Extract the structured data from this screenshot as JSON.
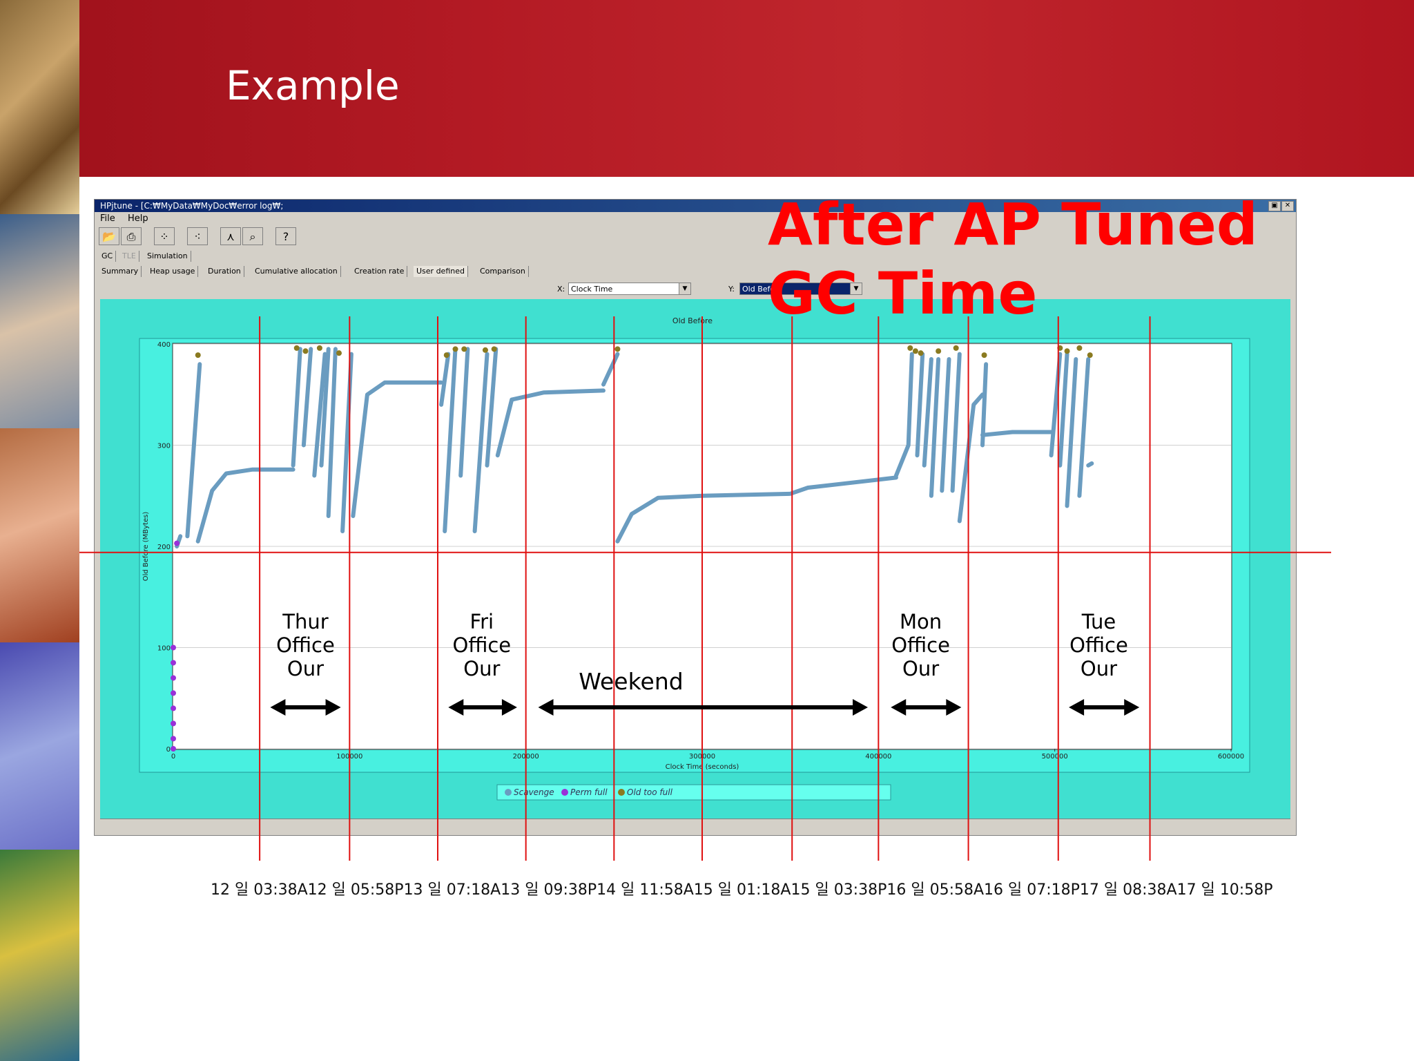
{
  "slide": {
    "title": "Example",
    "overlay_line1": "After AP Tuned",
    "overlay_line2": "GC Time",
    "date_labels": [
      "12 일 03:38A",
      "12 일 05:58P",
      "13 일 07:18A",
      "13 일 09:38P",
      "14 일 11:58A",
      "15 일 01:18A",
      "15 일 03:38P",
      "16 일 05:58A",
      "16 일 07:18P",
      "17 일 08:38A",
      "17 일 10:58P"
    ]
  },
  "window": {
    "title": "HPjtune - [C:₩MyData₩MyDoc₩error log₩;",
    "menu": [
      "File",
      "Help"
    ],
    "toolbar_icons": [
      "open-icon",
      "print-icon",
      "scatter-icon",
      "color-points-icon",
      "filter-icon",
      "zoom-icon",
      "help-icon"
    ],
    "top_tabs": [
      "GC",
      "TLE",
      "Simulation"
    ],
    "sub_tabs": [
      "Summary",
      "Heap usage",
      "Duration",
      "Cumulative allocation",
      "Creation rate",
      "User defined",
      "Comparison"
    ],
    "active_sub_tab": "User defined",
    "x_label": "X:",
    "x_value": "Clock Time",
    "y_label": "Y:",
    "y_value": "Old Before"
  },
  "chart_data": {
    "type": "scatter",
    "title": "Old Before",
    "xlabel": "Clock Time (seconds)",
    "ylabel": "Old Before (MBytes)",
    "xlim": [
      0,
      600000
    ],
    "ylim": [
      0,
      400
    ],
    "x_ticks": [
      "0",
      "100000",
      "200000",
      "300000",
      "400000",
      "500000",
      "600000"
    ],
    "y_ticks": [
      "0",
      "100",
      "200",
      "300",
      "400"
    ],
    "legend": [
      "Scavenge",
      "Perm full",
      "Old too full"
    ],
    "legend_position": "bottom",
    "colors": {
      "scavenge": "#6a9cc0",
      "perm_full": "#9a30d8",
      "old_too_full": "#8a7a20",
      "plot_bg": "#40e0d0",
      "markers": "#e01010"
    },
    "scavenge_segments": [
      [
        [
          8000,
          210
        ],
        [
          15000,
          380
        ]
      ],
      [
        [
          2000,
          200
        ],
        [
          4000,
          210
        ]
      ],
      [
        [
          14000,
          205
        ],
        [
          22000,
          255
        ],
        [
          30000,
          272
        ],
        [
          45000,
          276
        ],
        [
          68000,
          276
        ]
      ],
      [
        [
          68000,
          280
        ],
        [
          72000,
          395
        ]
      ],
      [
        [
          74000,
          300
        ],
        [
          78000,
          395
        ]
      ],
      [
        [
          80000,
          270
        ],
        [
          86000,
          390
        ]
      ],
      [
        [
          84000,
          280
        ],
        [
          88000,
          395
        ]
      ],
      [
        [
          88000,
          230
        ],
        [
          92000,
          395
        ]
      ],
      [
        [
          96000,
          215
        ],
        [
          101000,
          390
        ]
      ],
      [
        [
          102000,
          230
        ],
        [
          110000,
          350
        ],
        [
          120000,
          362
        ],
        [
          152000,
          362
        ]
      ],
      [
        [
          152000,
          340
        ],
        [
          156000,
          390
        ]
      ],
      [
        [
          154000,
          215
        ],
        [
          160000,
          395
        ]
      ],
      [
        [
          163000,
          270
        ],
        [
          167000,
          395
        ]
      ],
      [
        [
          171000,
          215
        ],
        [
          178000,
          390
        ]
      ],
      [
        [
          178000,
          280
        ],
        [
          183000,
          395
        ]
      ],
      [
        [
          184000,
          290
        ],
        [
          192000,
          345
        ],
        [
          210000,
          352
        ],
        [
          244000,
          354
        ]
      ],
      [
        [
          244000,
          360
        ],
        [
          252000,
          390
        ]
      ],
      [
        [
          252000,
          205
        ],
        [
          260000,
          232
        ],
        [
          275000,
          248
        ],
        [
          300000,
          250
        ],
        [
          350000,
          252
        ],
        [
          360000,
          258
        ],
        [
          380000,
          262
        ],
        [
          410000,
          268
        ]
      ],
      [
        [
          410000,
          270
        ],
        [
          417000,
          300
        ],
        [
          419000,
          390
        ]
      ],
      [
        [
          422000,
          290
        ],
        [
          425000,
          390
        ]
      ],
      [
        [
          426000,
          280
        ],
        [
          430000,
          385
        ]
      ],
      [
        [
          430000,
          250
        ],
        [
          434000,
          385
        ]
      ],
      [
        [
          436000,
          255
        ],
        [
          440000,
          385
        ]
      ],
      [
        [
          442000,
          255
        ],
        [
          446000,
          390
        ]
      ],
      [
        [
          446000,
          225
        ],
        [
          454000,
          340
        ],
        [
          459000,
          350
        ]
      ],
      [
        [
          459000,
          310
        ],
        [
          476000,
          313
        ],
        [
          498000,
          313
        ]
      ],
      [
        [
          498000,
          290
        ],
        [
          503000,
          390
        ]
      ],
      [
        [
          503000,
          280
        ],
        [
          507000,
          390
        ]
      ],
      [
        [
          507000,
          240
        ],
        [
          512000,
          385
        ]
      ],
      [
        [
          514000,
          250
        ],
        [
          519000,
          385
        ]
      ],
      [
        [
          519000,
          280
        ],
        [
          521000,
          282
        ]
      ],
      [
        [
          459000,
          300
        ],
        [
          461000,
          380
        ]
      ]
    ],
    "perm_full_points": [
      [
        0,
        0
      ],
      [
        0,
        10
      ],
      [
        0,
        25
      ],
      [
        0,
        40
      ],
      [
        0,
        55
      ],
      [
        0,
        70
      ],
      [
        0,
        85
      ],
      [
        0,
        100
      ],
      [
        2000,
        203
      ]
    ],
    "old_too_full_points": [
      [
        14000,
        389
      ],
      [
        70000,
        396
      ],
      [
        75000,
        393
      ],
      [
        83000,
        396
      ],
      [
        94000,
        391
      ],
      [
        155000,
        389
      ],
      [
        160000,
        395
      ],
      [
        165000,
        395
      ],
      [
        177000,
        394
      ],
      [
        182000,
        395
      ],
      [
        252000,
        395
      ],
      [
        418000,
        396
      ],
      [
        421000,
        393
      ],
      [
        424000,
        391
      ],
      [
        434000,
        393
      ],
      [
        444000,
        396
      ],
      [
        460000,
        389
      ],
      [
        503000,
        396
      ],
      [
        507000,
        393
      ],
      [
        514000,
        396
      ],
      [
        520000,
        389
      ]
    ],
    "marker_vlines_x": [
      49000,
      100000,
      150000,
      200000,
      250000,
      300000,
      351000,
      400000,
      451000,
      502000,
      554000
    ],
    "marker_hline_y": 194,
    "annotations": [
      {
        "lines": [
          "Thur",
          "Office",
          "Our"
        ],
        "x": 75000
      },
      {
        "lines": [
          "Fri",
          "Office",
          "Our"
        ],
        "x": 175000
      },
      {
        "lines": [
          "Mon",
          "Office",
          "Our"
        ],
        "x": 424000
      },
      {
        "lines": [
          "Tue",
          "Office",
          "Our"
        ],
        "x": 525000
      }
    ],
    "weekend_label": "Weekend",
    "arrows": [
      [
        55000,
        95000
      ],
      [
        156000,
        195000
      ],
      [
        207000,
        394000
      ],
      [
        407000,
        447000
      ],
      [
        508000,
        548000
      ]
    ]
  }
}
